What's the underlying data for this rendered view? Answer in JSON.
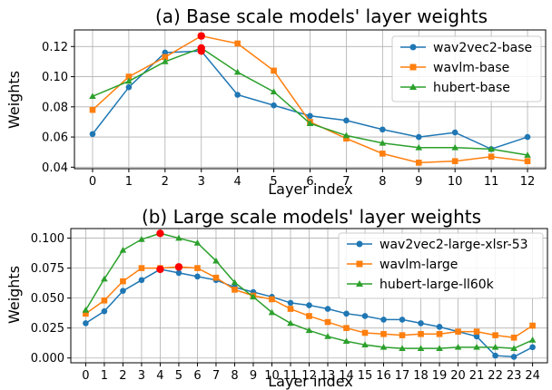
{
  "colors": {
    "blue": "#1f77b4",
    "orange": "#ff7f0e",
    "green": "#2ca02c",
    "highlight": "#ff0000",
    "grid": "#b0b0b0"
  },
  "chart_data": [
    {
      "type": "line",
      "title": "(a) Base scale models' layer weights",
      "xlabel": "Layer index",
      "ylabel": "Weights",
      "x": [
        0,
        1,
        2,
        3,
        4,
        5,
        6,
        7,
        8,
        9,
        10,
        11,
        12
      ],
      "xlim": [
        -0.5,
        12.5
      ],
      "ylim": [
        0.039,
        0.131
      ],
      "yticks": [
        0.04,
        0.06,
        0.08,
        0.1,
        0.12
      ],
      "ytick_labels": [
        "0.04",
        "0.06",
        "0.08",
        "0.10",
        "0.12"
      ],
      "grid": true,
      "legend_position": "upper-right",
      "series": [
        {
          "name": "wav2vec2-base",
          "color": "#1f77b4",
          "marker": "circle",
          "values": [
            0.062,
            0.093,
            0.116,
            0.117,
            0.088,
            0.081,
            0.074,
            0.071,
            0.065,
            0.06,
            0.063,
            0.052,
            0.06
          ],
          "highlight_index": 3
        },
        {
          "name": "wavlm-base",
          "color": "#ff7f0e",
          "marker": "square",
          "values": [
            0.078,
            0.1,
            0.113,
            0.127,
            0.122,
            0.104,
            0.07,
            0.059,
            0.049,
            0.043,
            0.044,
            0.047,
            0.044
          ],
          "highlight_index": 3
        },
        {
          "name": "hubert-base",
          "color": "#2ca02c",
          "marker": "triangle",
          "values": [
            0.087,
            0.097,
            0.11,
            0.119,
            0.103,
            0.09,
            0.069,
            0.061,
            0.056,
            0.053,
            0.053,
            0.052,
            0.048
          ],
          "highlight_index": 3
        }
      ]
    },
    {
      "type": "line",
      "title": "(b) Large scale models' layer weights",
      "xlabel": "Layer index",
      "ylabel": "Weights",
      "x": [
        0,
        1,
        2,
        3,
        4,
        5,
        6,
        7,
        8,
        9,
        10,
        11,
        12,
        13,
        14,
        15,
        16,
        17,
        18,
        19,
        20,
        21,
        22,
        23,
        24
      ],
      "xlim": [
        -0.8,
        24.8
      ],
      "ylim": [
        -0.004,
        0.108
      ],
      "yticks": [
        0.0,
        0.025,
        0.05,
        0.075,
        0.1
      ],
      "ytick_labels": [
        "0.000",
        "0.025",
        "0.050",
        "0.075",
        "0.100"
      ],
      "grid": true,
      "legend_position": "upper-right",
      "series": [
        {
          "name": "wav2vec2-large-xlsr-53",
          "color": "#1f77b4",
          "marker": "circle",
          "values": [
            0.029,
            0.039,
            0.056,
            0.065,
            0.074,
            0.071,
            0.068,
            0.065,
            0.059,
            0.055,
            0.051,
            0.046,
            0.044,
            0.041,
            0.037,
            0.035,
            0.032,
            0.032,
            0.029,
            0.026,
            0.022,
            0.018,
            0.002,
            0.001,
            0.009
          ],
          "highlight_index": 4
        },
        {
          "name": "wavlm-large",
          "color": "#ff7f0e",
          "marker": "square",
          "values": [
            0.037,
            0.048,
            0.064,
            0.075,
            0.075,
            0.076,
            0.075,
            0.067,
            0.057,
            0.052,
            0.049,
            0.041,
            0.035,
            0.03,
            0.025,
            0.021,
            0.02,
            0.019,
            0.02,
            0.02,
            0.022,
            0.022,
            0.019,
            0.017,
            0.027
          ],
          "highlight_index": 5
        },
        {
          "name": "hubert-large-ll60k",
          "color": "#2ca02c",
          "marker": "triangle",
          "values": [
            0.04,
            0.066,
            0.09,
            0.099,
            0.104,
            0.1,
            0.096,
            0.081,
            0.063,
            0.051,
            0.038,
            0.029,
            0.023,
            0.018,
            0.014,
            0.011,
            0.009,
            0.008,
            0.008,
            0.008,
            0.009,
            0.009,
            0.009,
            0.008,
            0.015
          ],
          "highlight_index": 4
        }
      ]
    }
  ]
}
